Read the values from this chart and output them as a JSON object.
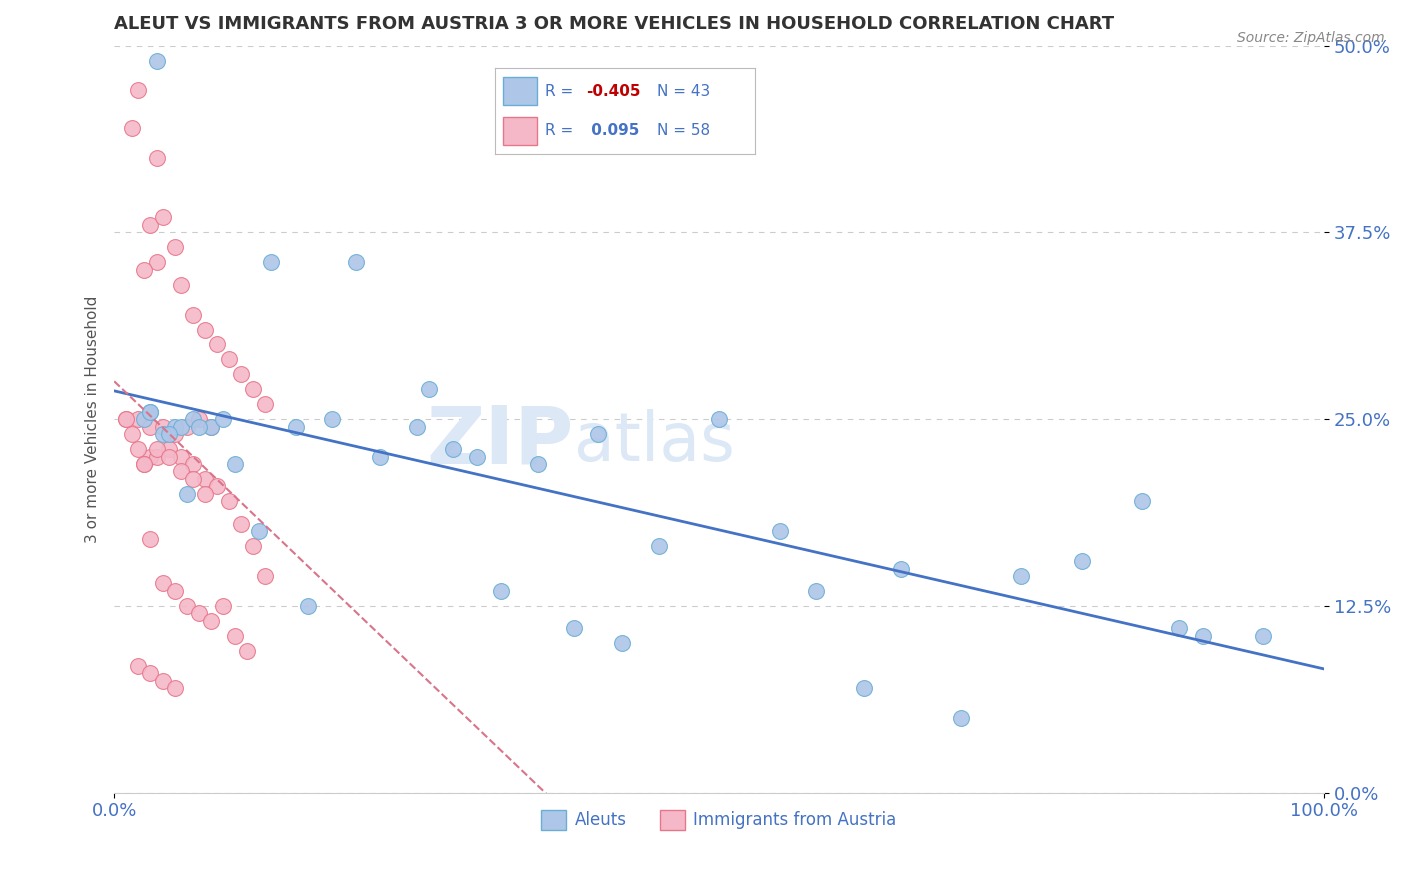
{
  "title": "ALEUT VS IMMIGRANTS FROM AUSTRIA 3 OR MORE VEHICLES IN HOUSEHOLD CORRELATION CHART",
  "source": "Source: ZipAtlas.com",
  "ylabel": "3 or more Vehicles in Household",
  "yticks": [
    "0.0%",
    "12.5%",
    "25.0%",
    "37.5%",
    "50.0%"
  ],
  "ytick_vals": [
    0.0,
    12.5,
    25.0,
    37.5,
    50.0
  ],
  "xlim": [
    0.0,
    100.0
  ],
  "ylim": [
    0.0,
    50.0
  ],
  "legend_labels": [
    "Aleuts",
    "Immigrants from Austria"
  ],
  "aleut_color": "#aec6e8",
  "austria_color": "#f4b8c8",
  "aleut_edge_color": "#6aaed6",
  "austria_edge_color": "#e8768a",
  "aleut_line_color": "#4472c4",
  "austria_line_color": "#d9748a",
  "R_aleut": "-0.405",
  "R_aleut_color": "#c00000",
  "N_aleut": "43",
  "R_austria": "0.095",
  "R_austria_color": "#4472c4",
  "N_austria": "58",
  "aleut_x": [
    3.5,
    20.0,
    30.0,
    13.0,
    50.0,
    95.0,
    85.0,
    88.0,
    75.0,
    55.0,
    62.0,
    70.0,
    40.0,
    45.0,
    28.0,
    5.0,
    8.0,
    3.0,
    2.5,
    4.0,
    3.0,
    5.5,
    6.5,
    7.0,
    9.0,
    10.0,
    12.0,
    15.0,
    18.0,
    22.0,
    25.0,
    4.5,
    16.0,
    38.0,
    42.0,
    58.0,
    65.0,
    80.0,
    90.0,
    35.0,
    6.0,
    26.0,
    32.0
  ],
  "aleut_y": [
    49.0,
    35.5,
    22.5,
    35.5,
    25.0,
    10.5,
    19.5,
    11.0,
    14.5,
    17.5,
    7.0,
    5.0,
    24.0,
    16.5,
    23.0,
    24.5,
    24.5,
    25.5,
    25.0,
    24.0,
    25.5,
    24.5,
    25.0,
    24.5,
    25.0,
    22.0,
    17.5,
    24.5,
    25.0,
    22.5,
    24.5,
    24.0,
    12.5,
    11.0,
    10.0,
    13.5,
    15.0,
    15.5,
    10.5,
    22.0,
    20.0,
    27.0,
    13.5
  ],
  "austria_x": [
    2.0,
    3.5,
    1.5,
    3.0,
    4.0,
    5.0,
    3.5,
    2.5,
    5.5,
    6.5,
    7.5,
    8.5,
    9.5,
    10.5,
    11.5,
    12.5,
    1.0,
    2.0,
    3.0,
    4.0,
    5.0,
    6.0,
    7.0,
    3.0,
    8.0,
    2.5,
    3.5,
    4.5,
    5.5,
    6.5,
    7.5,
    8.5,
    9.5,
    10.5,
    11.5,
    12.5,
    3.0,
    4.0,
    5.0,
    6.0,
    7.0,
    8.0,
    9.0,
    10.0,
    11.0,
    1.0,
    1.5,
    2.0,
    2.5,
    3.5,
    4.5,
    5.5,
    6.5,
    7.5,
    2.0,
    3.0,
    4.0,
    5.0
  ],
  "austria_y": [
    47.0,
    42.5,
    44.5,
    38.0,
    38.5,
    36.5,
    35.5,
    35.0,
    34.0,
    32.0,
    31.0,
    30.0,
    29.0,
    28.0,
    27.0,
    26.0,
    25.0,
    25.0,
    24.5,
    24.5,
    24.0,
    24.5,
    25.0,
    22.5,
    24.5,
    22.0,
    22.5,
    23.0,
    22.5,
    22.0,
    21.0,
    20.5,
    19.5,
    18.0,
    16.5,
    14.5,
    17.0,
    14.0,
    13.5,
    12.5,
    12.0,
    11.5,
    12.5,
    10.5,
    9.5,
    25.0,
    24.0,
    23.0,
    22.0,
    23.0,
    22.5,
    21.5,
    21.0,
    20.0,
    8.5,
    8.0,
    7.5,
    7.0
  ],
  "watermark_zip": "ZIP",
  "watermark_atlas": "atlas",
  "background_color": "#ffffff",
  "grid_color": "#cccccc"
}
